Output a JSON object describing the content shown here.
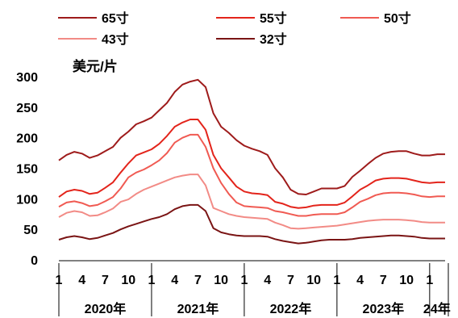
{
  "chart_data": {
    "type": "line",
    "ylabel": "美元/片",
    "ylim": [
      0,
      300
    ],
    "yticks": [
      0,
      50,
      100,
      150,
      200,
      250,
      300
    ],
    "grid": false,
    "legend_position": "top",
    "x_tick_labels": [
      "1",
      "4",
      "7",
      "10",
      "1",
      "4",
      "7",
      "10",
      "1",
      "4",
      "7",
      "10",
      "1",
      "4",
      "7",
      "10",
      "1"
    ],
    "year_labels": [
      "2020年",
      "2021年",
      "2022年",
      "2023年",
      "24年"
    ],
    "x": [
      "2020-01",
      "2020-02",
      "2020-03",
      "2020-04",
      "2020-05",
      "2020-06",
      "2020-07",
      "2020-08",
      "2020-09",
      "2020-10",
      "2020-11",
      "2020-12",
      "2021-01",
      "2021-02",
      "2021-03",
      "2021-04",
      "2021-05",
      "2021-06",
      "2021-07",
      "2021-08",
      "2021-09",
      "2021-10",
      "2021-11",
      "2021-12",
      "2022-01",
      "2022-02",
      "2022-03",
      "2022-04",
      "2022-05",
      "2022-06",
      "2022-07",
      "2022-08",
      "2022-09",
      "2022-10",
      "2022-11",
      "2022-12",
      "2023-01",
      "2023-02",
      "2023-03",
      "2023-04",
      "2023-05",
      "2023-06",
      "2023-07",
      "2023-08",
      "2023-09",
      "2023-10",
      "2023-11",
      "2023-12",
      "2024-01",
      "2024-02",
      "2024-03"
    ],
    "series": [
      {
        "name": "65寸",
        "color": "#9E1B1B",
        "values": [
          163,
          172,
          177,
          174,
          167,
          171,
          178,
          185,
          200,
          210,
          222,
          227,
          233,
          245,
          257,
          275,
          287,
          292,
          295,
          283,
          240,
          218,
          208,
          196,
          187,
          182,
          178,
          172,
          150,
          135,
          115,
          108,
          107,
          112,
          117,
          117,
          117,
          121,
          136,
          146,
          157,
          167,
          174,
          177,
          178,
          178,
          174,
          171,
          171,
          173,
          173
        ]
      },
      {
        "name": "55寸",
        "color": "#E3241B",
        "values": [
          103,
          112,
          115,
          113,
          108,
          110,
          118,
          127,
          143,
          158,
          171,
          176,
          181,
          190,
          203,
          218,
          225,
          230,
          230,
          213,
          172,
          150,
          135,
          120,
          112,
          109,
          108,
          106,
          95,
          92,
          87,
          85,
          86,
          89,
          90,
          90,
          90,
          94,
          104,
          115,
          122,
          130,
          133,
          134,
          134,
          133,
          130,
          127,
          126,
          127,
          127
        ]
      },
      {
        "name": "50寸",
        "color": "#F05A52",
        "values": [
          87,
          94,
          96,
          93,
          88,
          90,
          96,
          103,
          117,
          135,
          143,
          148,
          155,
          163,
          175,
          192,
          200,
          205,
          205,
          185,
          150,
          126,
          108,
          94,
          88,
          87,
          86,
          85,
          80,
          78,
          75,
          72,
          72,
          74,
          75,
          75,
          75,
          78,
          86,
          95,
          100,
          106,
          109,
          110,
          110,
          109,
          107,
          104,
          103,
          104,
          104
        ]
      },
      {
        "name": "43寸",
        "color": "#F28B86",
        "values": [
          70,
          77,
          80,
          78,
          72,
          73,
          78,
          84,
          95,
          99,
          108,
          115,
          120,
          125,
          130,
          135,
          138,
          140,
          140,
          122,
          85,
          80,
          75,
          72,
          70,
          69,
          68,
          67,
          61,
          57,
          52,
          51,
          52,
          53,
          54,
          55,
          56,
          58,
          60,
          62,
          64,
          65,
          66,
          66,
          66,
          65,
          64,
          62,
          61,
          61,
          61
        ]
      },
      {
        "name": "32寸",
        "color": "#7A1414",
        "values": [
          33,
          37,
          39,
          37,
          34,
          36,
          40,
          44,
          50,
          55,
          59,
          63,
          67,
          70,
          75,
          83,
          88,
          90,
          90,
          80,
          52,
          45,
          42,
          40,
          39,
          39,
          39,
          38,
          34,
          31,
          29,
          27,
          28,
          30,
          32,
          33,
          33,
          33,
          34,
          36,
          37,
          38,
          39,
          40,
          40,
          39,
          38,
          36,
          35,
          35,
          35
        ]
      }
    ]
  }
}
